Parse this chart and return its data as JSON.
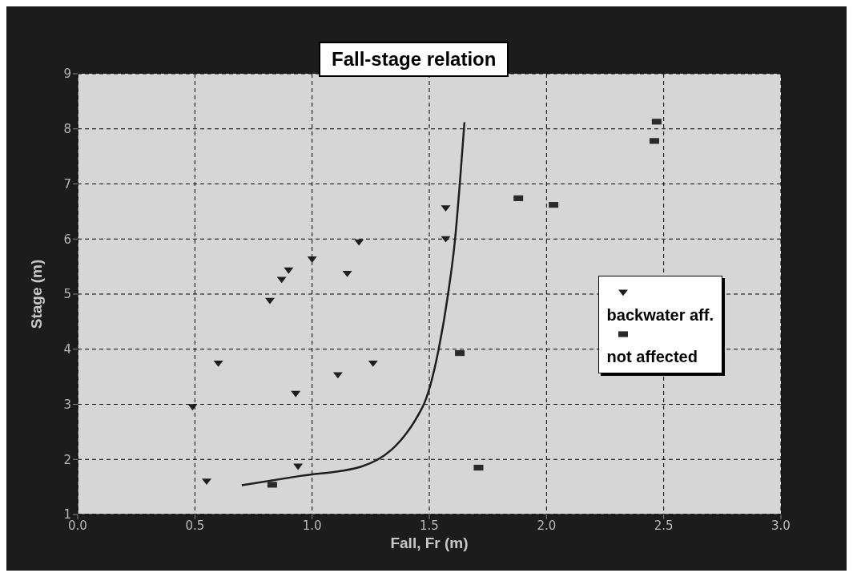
{
  "chart_data": {
    "type": "scatter",
    "title": "Fall-stage relation",
    "xlabel": "Fall, Fr (m)",
    "ylabel": "Stage (m)",
    "xlim": [
      0,
      3
    ],
    "xticks": [
      {
        "value": 0,
        "label": "0.0"
      },
      {
        "value": 0.5,
        "label": "0.5"
      },
      {
        "value": 1,
        "label": "1.0"
      },
      {
        "value": 1.5,
        "label": "1.5"
      },
      {
        "value": 2,
        "label": "2.0"
      },
      {
        "value": 2.5,
        "label": "2.5"
      },
      {
        "value": 3,
        "label": "3.0"
      }
    ],
    "ylim": [
      1,
      9
    ],
    "yticks": [
      1,
      2,
      3,
      4,
      5,
      6,
      7,
      8,
      9
    ],
    "grid": true,
    "legend": "right",
    "series": [
      {
        "name": "backwater aff.",
        "marker": "triangle",
        "color": "#1e1e1e",
        "x": [
          0.49,
          0.55,
          0.6,
          0.82,
          0.87,
          0.9,
          0.93,
          0.94,
          1.0,
          1.11,
          1.15,
          1.2,
          1.26,
          1.57,
          1.57
        ],
        "values": [
          2.95,
          1.6,
          3.74,
          4.88,
          5.26,
          5.43,
          3.19,
          1.87,
          5.63,
          3.53,
          5.37,
          5.94,
          3.74,
          6.56,
          6.0
        ]
      },
      {
        "name": "not affected",
        "marker": "square",
        "color": "#2a2a2a",
        "x": [
          0.83,
          1.63,
          1.71,
          1.88,
          2.03,
          2.46,
          2.47
        ],
        "values": [
          1.54,
          3.93,
          1.85,
          6.74,
          6.62,
          7.78,
          8.13
        ]
      },
      {
        "type": "line",
        "marker": "none",
        "color": "#1e1e1e",
        "x": [
          0.7,
          0.95,
          1.21,
          1.47,
          1.54,
          1.58,
          1.61,
          1.63,
          1.65
        ],
        "values": [
          1.53,
          1.7,
          1.87,
          2.94,
          4.0,
          5.0,
          6.0,
          7.0,
          8.12
        ]
      }
    ]
  }
}
